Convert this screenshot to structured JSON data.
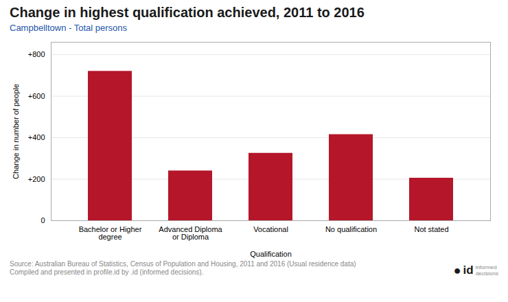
{
  "chart_data": {
    "type": "bar",
    "title": "Change in highest qualification achieved, 2011 to 2016",
    "subtitle": "Campbelltown - Total persons",
    "categories": [
      "Bachelor or Higher\ndegree",
      "Advanced Diploma\nor Diploma",
      "Vocational",
      "No qualification",
      "Not stated"
    ],
    "values": [
      720,
      240,
      325,
      415,
      205
    ],
    "color": "#B5162A",
    "xlabel": "Qualification",
    "ylabel": "Change in number of people",
    "ylim": [
      0,
      860
    ],
    "yticks": [
      0,
      {
        "value": 200,
        "label": "+200"
      },
      {
        "value": 400,
        "label": "+400"
      },
      {
        "value": 600,
        "label": "+600"
      },
      {
        "value": 800,
        "label": "+800"
      }
    ],
    "grid": true,
    "caption": "Source: Australian Bureau of Statistics, Census of Population and Housing, 2011 and 2016 (Usual residence data)\nCompiled and presented in profile.id by .id (informed decisions).",
    "annotations": [
      "●",
      "id",
      "informed\ndecisions"
    ]
  }
}
